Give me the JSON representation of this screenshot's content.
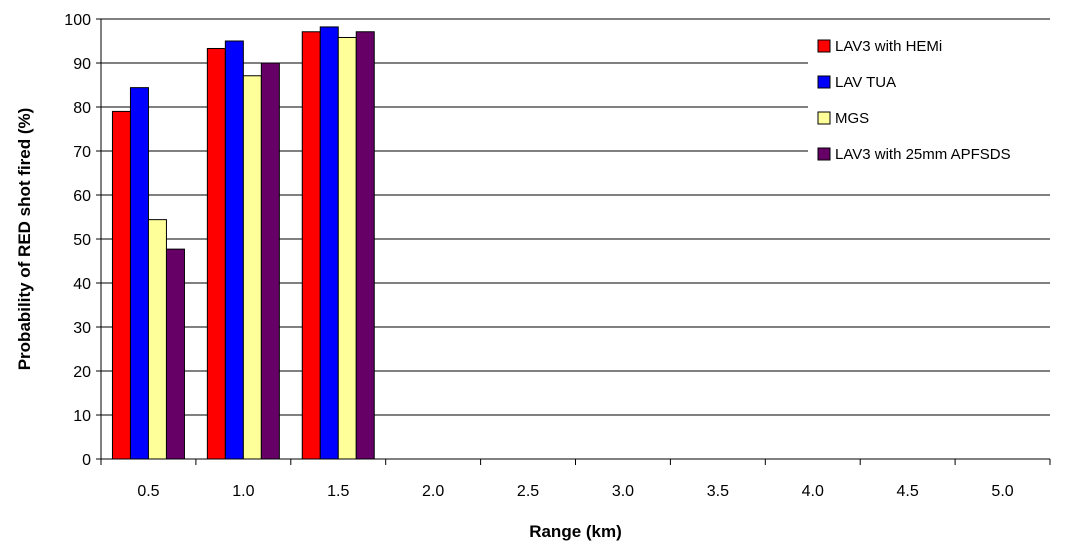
{
  "chart_data": {
    "type": "bar",
    "title": "",
    "xlabel": "Range (km)",
    "ylabel": "Probability of RED shot fired (%)",
    "ylim": [
      0,
      100
    ],
    "yticks": [
      "0",
      "10",
      "20",
      "30",
      "40",
      "50",
      "60",
      "70",
      "80",
      "90",
      "100"
    ],
    "categories": [
      "0.5",
      "1.0",
      "1.5",
      "2.0",
      "2.5",
      "3.0",
      "3.5",
      "4.0",
      "4.5",
      "5.0"
    ],
    "grid": "horizontal",
    "legend_position": "top-right",
    "series": [
      {
        "name": "LAV3 with HEMi",
        "color": "#ff0000",
        "values": [
          79,
          93.3,
          97.1,
          null,
          null,
          null,
          null,
          null,
          null,
          null
        ]
      },
      {
        "name": "LAV TUA",
        "color": "#0000ff",
        "values": [
          84.4,
          95,
          98.2,
          null,
          null,
          null,
          null,
          null,
          null,
          null
        ]
      },
      {
        "name": "MGS",
        "color": "#ffff99",
        "values": [
          54.4,
          87.1,
          95.8,
          null,
          null,
          null,
          null,
          null,
          null,
          null
        ]
      },
      {
        "name": "LAV3 with 25mm APFSDS",
        "color": "#660066",
        "values": [
          47.7,
          90,
          97.1,
          null,
          null,
          null,
          null,
          null,
          null,
          null
        ]
      }
    ]
  }
}
